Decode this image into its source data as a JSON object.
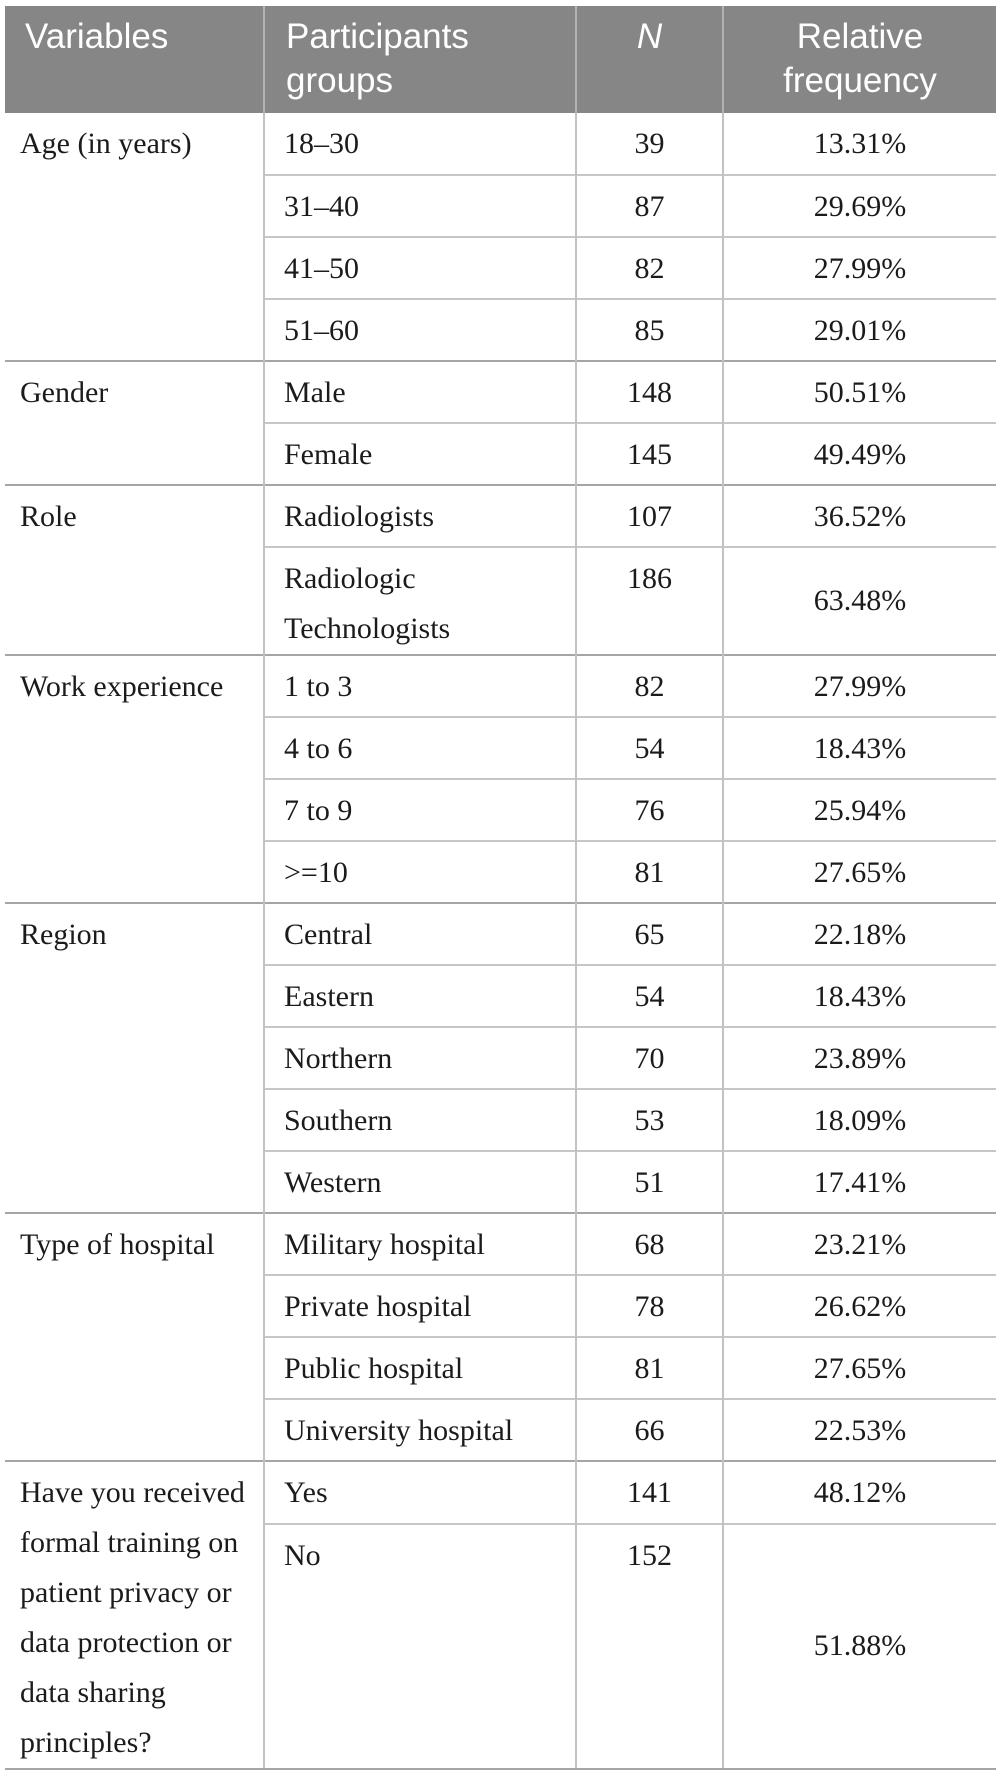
{
  "colors": {
    "header_bg": "#868686",
    "header_text": "#ffffff",
    "body_text": "#1b1b1b",
    "group_line": "#a5a5a5",
    "row_line": "#c6c6c6"
  },
  "table": {
    "columns": {
      "variables": "Variables",
      "groups": "Participants groups",
      "n": "N",
      "freq": "Relative frequency"
    },
    "groups": [
      {
        "variable": "Age (in years)",
        "rows": [
          [
            "18–30",
            "39",
            "13.31%"
          ],
          [
            "31–40",
            "87",
            "29.69%"
          ],
          [
            "41–50",
            "82",
            "27.99%"
          ],
          [
            "51–60",
            "85",
            "29.01%"
          ]
        ]
      },
      {
        "variable": "Gender",
        "rows": [
          [
            "Male",
            "148",
            "50.51%"
          ],
          [
            "Female",
            "145",
            "49.49%"
          ]
        ]
      },
      {
        "variable": "Role",
        "rows": [
          [
            "Radiologists",
            "107",
            "36.52%"
          ],
          [
            "Radiologic Technologists",
            "186",
            "63.48%"
          ]
        ]
      },
      {
        "variable": "Work experience",
        "rows": [
          [
            "1 to 3",
            "82",
            "27.99%"
          ],
          [
            "4 to 6",
            "54",
            "18.43%"
          ],
          [
            "7 to 9",
            "76",
            "25.94%"
          ],
          [
            ">=10",
            "81",
            "27.65%"
          ]
        ]
      },
      {
        "variable": "Region",
        "rows": [
          [
            "Central",
            "65",
            "22.18%"
          ],
          [
            "Eastern",
            "54",
            "18.43%"
          ],
          [
            "Northern",
            "70",
            "23.89%"
          ],
          [
            "Southern",
            "53",
            "18.09%"
          ],
          [
            "Western",
            "51",
            "17.41%"
          ]
        ]
      },
      {
        "variable": "Type of hospital",
        "rows": [
          [
            "Military hospital",
            "68",
            "23.21%"
          ],
          [
            "Private hospital",
            "78",
            "26.62%"
          ],
          [
            "Public hospital",
            "81",
            "27.65%"
          ],
          [
            "University hospital",
            "66",
            "22.53%"
          ]
        ]
      },
      {
        "variable": "Have you received formal training on patient privacy or data protection or data sharing principles?",
        "rows": [
          [
            "Yes",
            "141",
            "48.12%"
          ],
          [
            "No",
            "152",
            "51.88%"
          ]
        ]
      }
    ]
  }
}
